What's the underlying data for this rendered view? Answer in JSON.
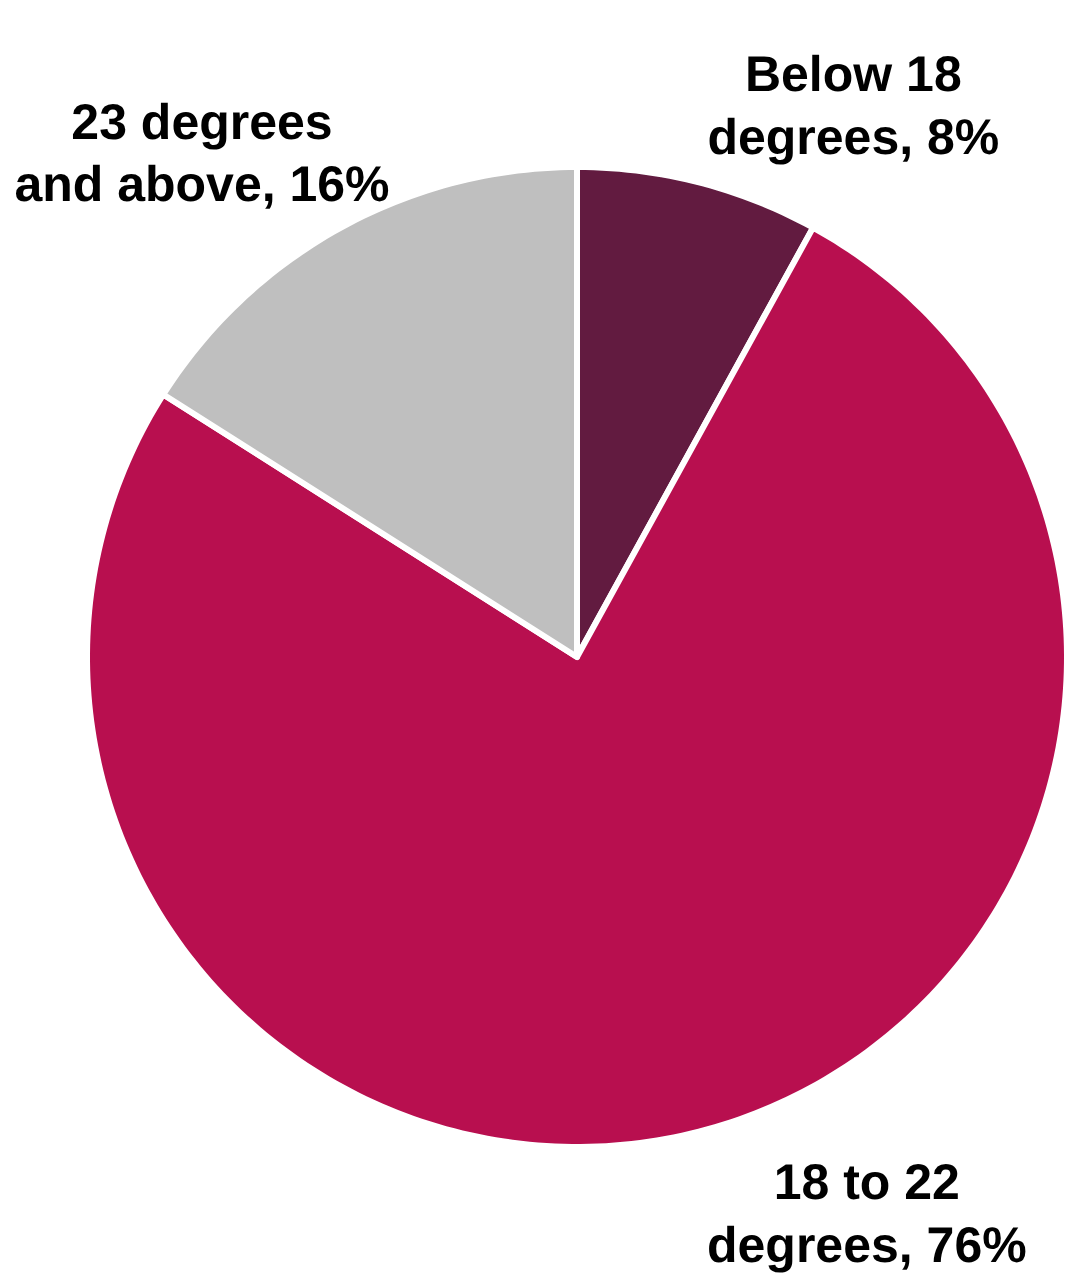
{
  "chart_data": {
    "type": "pie",
    "categories": [
      "Below 18 degrees",
      "18 to 22 degrees",
      "23 degrees and above"
    ],
    "values": [
      8,
      76,
      16
    ],
    "colors": [
      "#621b40",
      "#b80f4f",
      "#bfbfbf"
    ],
    "value_labels": [
      "8%",
      "76%",
      "16%"
    ]
  }
}
